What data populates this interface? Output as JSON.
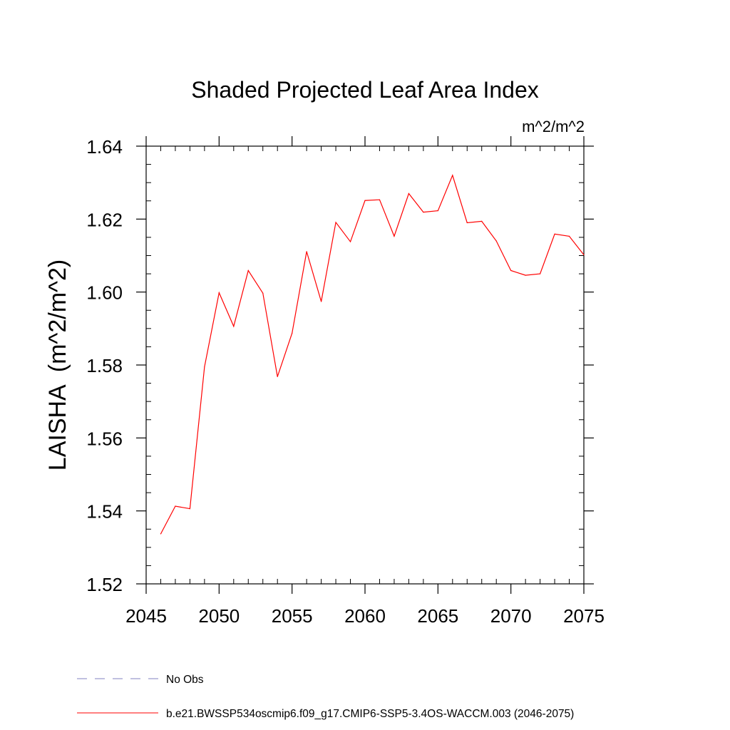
{
  "chart_data": {
    "type": "line",
    "title": "Shaded Projected Leaf Area Index",
    "units_label": "m^2/m^2",
    "ylabel": "LAISHA  (m^2/m^2)",
    "xlabel": "",
    "xlim": [
      2045,
      2075
    ],
    "ylim": [
      1.52,
      1.64
    ],
    "x_ticks": [
      2045,
      2050,
      2055,
      2060,
      2065,
      2070,
      2075
    ],
    "x_tick_labels": [
      "2045",
      "2050",
      "2055",
      "2060",
      "2065",
      "2070",
      "2075"
    ],
    "y_ticks": [
      1.52,
      1.54,
      1.56,
      1.58,
      1.6,
      1.62,
      1.64
    ],
    "y_tick_labels": [
      "1.52",
      "1.54",
      "1.56",
      "1.58",
      "1.60",
      "1.62",
      "1.64"
    ],
    "grid": false,
    "legend_position": "bottom-left",
    "series": [
      {
        "name": "No Obs",
        "color": "#8080c0",
        "dash": "dashed",
        "x": [],
        "values": []
      },
      {
        "name": "b.e21.BWSSP534oscmip6.f09_g17.CMIP6-SSP5-3.4OS-WACCM.003 (2046-2075)",
        "color": "#ff0000",
        "dash": "solid",
        "x": [
          2046,
          2047,
          2048,
          2049,
          2050,
          2051,
          2052,
          2053,
          2054,
          2055,
          2056,
          2057,
          2058,
          2059,
          2060,
          2061,
          2062,
          2063,
          2064,
          2065,
          2066,
          2067,
          2068,
          2069,
          2070,
          2071,
          2072,
          2073,
          2074,
          2075
        ],
        "values": [
          1.5337,
          1.5413,
          1.5406,
          1.5795,
          1.5998,
          1.5906,
          1.6059,
          1.5997,
          1.5768,
          1.5887,
          1.6111,
          1.5974,
          1.6191,
          1.6138,
          1.6251,
          1.6253,
          1.6153,
          1.627,
          1.6219,
          1.6223,
          1.632,
          1.619,
          1.6194,
          1.614,
          1.6059,
          1.6046,
          1.605,
          1.6159,
          1.6153,
          1.6102
        ]
      }
    ]
  }
}
